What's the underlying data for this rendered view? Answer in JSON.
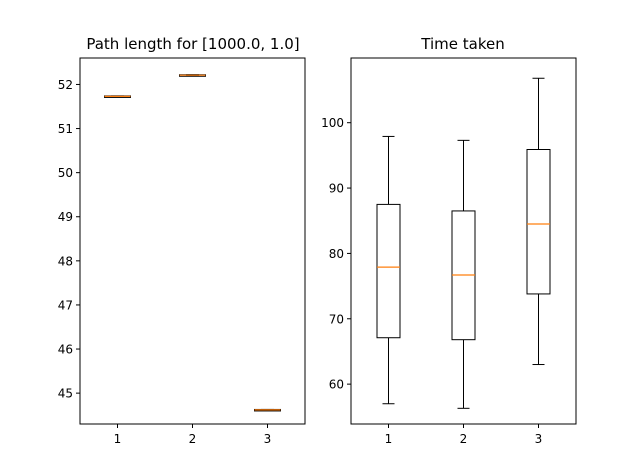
{
  "figure": {
    "background": "#ffffff"
  },
  "chart_data": [
    {
      "type": "box",
      "title": "Path length for [1000.0, 1.0]",
      "categories": [
        "1",
        "2",
        "3"
      ],
      "ylim": [
        44.3,
        52.6
      ],
      "yticks": [
        45,
        46,
        47,
        48,
        49,
        50,
        51,
        52
      ],
      "grid": false,
      "boxes": [
        {
          "category": "1",
          "whislo": 51.72,
          "q1": 51.72,
          "median": 51.73,
          "q3": 51.74,
          "whishi": 51.74
        },
        {
          "category": "2",
          "whislo": 52.2,
          "q1": 52.2,
          "median": 52.21,
          "q3": 52.22,
          "whishi": 52.22
        },
        {
          "category": "3",
          "whislo": 44.61,
          "q1": 44.61,
          "median": 44.62,
          "q3": 44.63,
          "whishi": 44.63
        }
      ],
      "colors": {
        "box": "#000000",
        "median": "#ff7f0e"
      }
    },
    {
      "type": "box",
      "title": "Time taken",
      "categories": [
        "1",
        "2",
        "3"
      ],
      "ylim": [
        53.9,
        109.9
      ],
      "yticks": [
        60,
        70,
        80,
        90,
        100
      ],
      "grid": false,
      "boxes": [
        {
          "category": "1",
          "whislo": 57.0,
          "q1": 67.1,
          "median": 77.9,
          "q3": 87.5,
          "whishi": 97.9
        },
        {
          "category": "2",
          "whislo": 56.3,
          "q1": 66.8,
          "median": 76.7,
          "q3": 86.5,
          "whishi": 97.3
        },
        {
          "category": "3",
          "whislo": 63.0,
          "q1": 73.8,
          "median": 84.5,
          "q3": 95.9,
          "whishi": 106.8
        }
      ],
      "colors": {
        "box": "#000000",
        "median": "#ff7f0e"
      }
    }
  ]
}
